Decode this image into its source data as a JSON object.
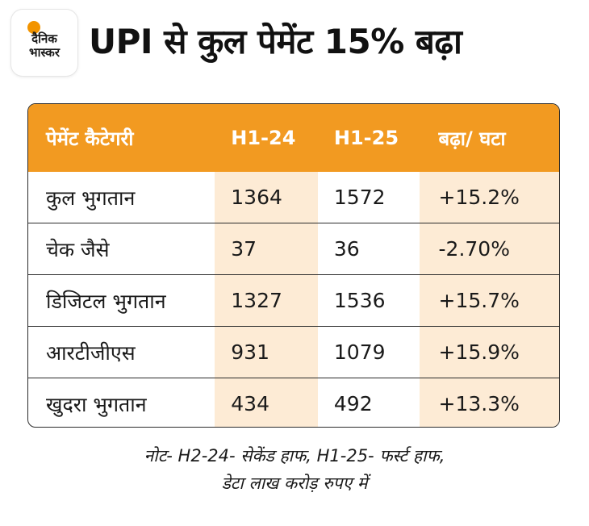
{
  "brand": {
    "line1": "दैनिक",
    "line2": "भास्कर"
  },
  "title": "UPI से कुल पेमेंट 15% बढ़ा",
  "table": {
    "headers": [
      "पेमेंट कैटेगरी",
      "H1-24",
      "H1-25",
      "बढ़ा/ घटा"
    ],
    "rows": [
      [
        "कुल भुगतान",
        "1364",
        "1572",
        "+15.2%"
      ],
      [
        "चेक जैसे",
        "37",
        "36",
        "-2.70%"
      ],
      [
        "डिजिटल भुगतान",
        "1327",
        "1536",
        "+15.7%"
      ],
      [
        "आरटीजीएस",
        "931",
        "1079",
        "+15.9%"
      ],
      [
        "खुदरा भुगतान",
        "434",
        "492",
        "+13.3%"
      ]
    ]
  },
  "note": {
    "line1": "नोट- H2-24- सेकेंड हाफ, H1-25- फर्स्ट हाफ,",
    "line2": "डेटा लाख करोड़ रुपए में"
  },
  "colors": {
    "accent": "#f29a21",
    "shade": "#fdebd5"
  }
}
